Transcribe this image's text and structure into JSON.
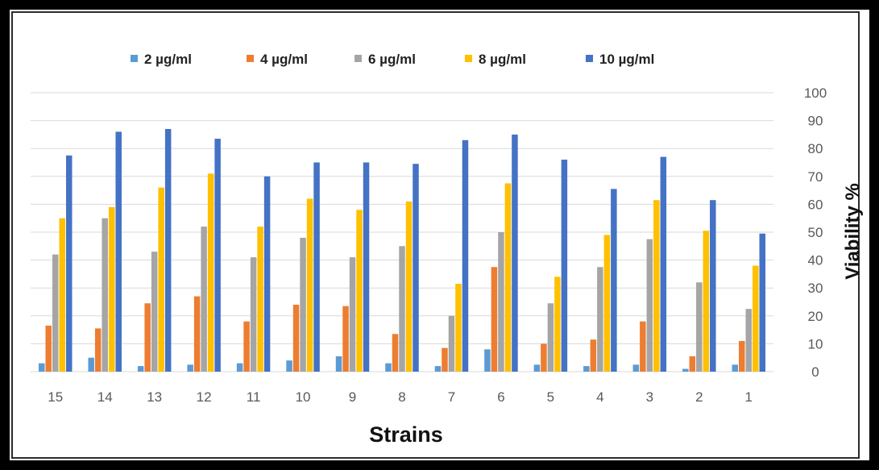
{
  "chart_data": {
    "type": "bar",
    "xlabel": "Strains",
    "ylabel": "Viability %",
    "ylim": [
      0,
      100
    ],
    "yticks": [
      0,
      10,
      20,
      30,
      40,
      50,
      60,
      70,
      80,
      90,
      100
    ],
    "y_axis_side": "right",
    "grid": true,
    "legend_position": "top",
    "categories": [
      "15",
      "14",
      "13",
      "12",
      "11",
      "10",
      "9",
      "8",
      "7",
      "6",
      "5",
      "4",
      "3",
      "2",
      "1"
    ],
    "series": [
      {
        "name": "2 µg/ml",
        "color": "#5B9BD5",
        "values": [
          3,
          5,
          2,
          2.5,
          3,
          4,
          5.5,
          3,
          2,
          8,
          2.5,
          2,
          2.5,
          1,
          2.5
        ]
      },
      {
        "name": "4 µg/ml",
        "color": "#ED7D31",
        "values": [
          16.5,
          15.5,
          24.5,
          27,
          18,
          24,
          23.5,
          13.5,
          8.5,
          37.5,
          10,
          11.5,
          18,
          5.5,
          11
        ]
      },
      {
        "name": "6  µg/ml",
        "color": "#A5A5A5",
        "values": [
          42,
          55,
          43,
          52,
          41,
          48,
          41,
          45,
          20,
          50,
          24.5,
          37.5,
          47.5,
          32,
          22.5
        ]
      },
      {
        "name": "8  µg/ml",
        "color": "#FFC000",
        "values": [
          55,
          59,
          66,
          71,
          52,
          62,
          58,
          61,
          31.5,
          67.5,
          34,
          49,
          61.5,
          50.5,
          38
        ]
      },
      {
        "name": "10  µg/ml",
        "color": "#4472C4",
        "values": [
          77.5,
          86,
          87,
          83.5,
          70,
          75,
          75,
          74.5,
          83,
          85,
          76,
          65.5,
          77,
          61.5,
          49.5
        ]
      }
    ]
  },
  "colors": {
    "gridline": "#d9d9d9",
    "frame": "#000000"
  }
}
